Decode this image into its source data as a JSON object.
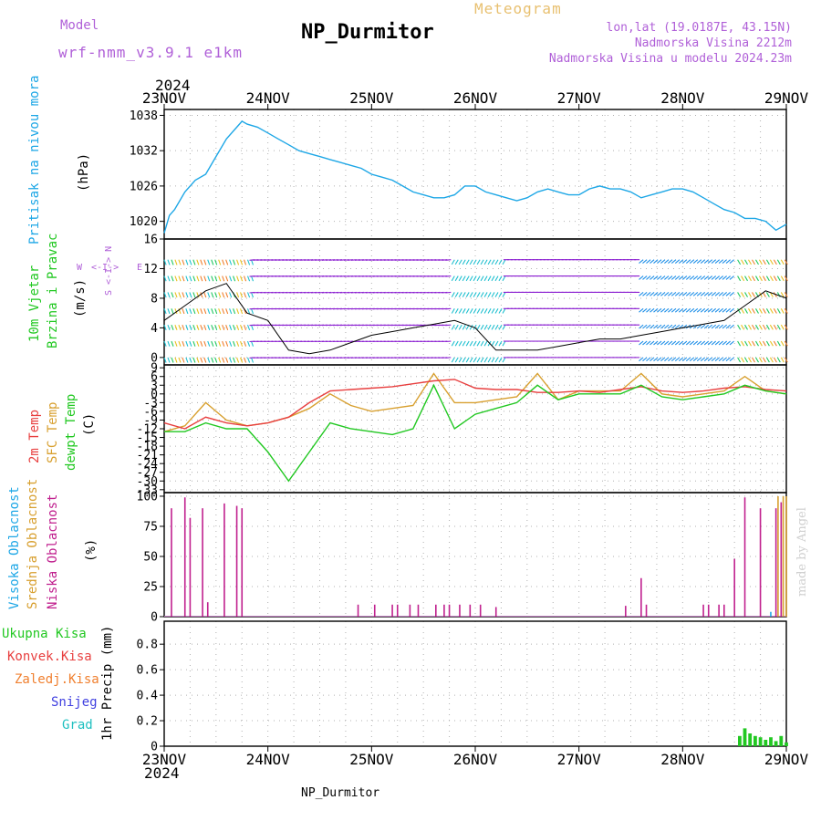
{
  "header": {
    "model_label": "Model",
    "model_value": "wrf-nmm_v3.9.1 e1km",
    "title": "NP_Durmitor",
    "meteogram": "Meteogram",
    "lonlat": "lon,lat (19.0187E, 43.15N)",
    "altitude": "Nadmorska Visina 2212m",
    "model_altitude": "Nadmorska Visina u modelu 2024.23m",
    "year_top": "2024",
    "year_bottom": "2024",
    "footer": "NP_Durmitor",
    "credit": "made by Angel"
  },
  "colors": {
    "pressure": "#1ea7e6",
    "temp2m": "#e84040",
    "sfc_temp": "#d8a030",
    "dewpt": "#22c822",
    "cloud_low": "#c0208e",
    "cloud_mid": "#d8a030",
    "cloud_high": "#1ea7e6",
    "wind_purple": "#8a1ed0",
    "precip_green": "#22c822"
  },
  "panel_labels": {
    "pressure": [
      "Pritisak na nivou mora",
      "(hPa)"
    ],
    "wind": [
      "10m Vjetar",
      "Brzina i Pravac",
      "(m/s)"
    ],
    "compass": [
      "W",
      "<-I->",
      "E",
      "S <-I-> N"
    ],
    "temp": [
      "2m Temp",
      "SFC Temp",
      "dewpt Temp",
      "(C)"
    ],
    "cloud": [
      "Visoka Oblacnost",
      "Srednja Oblacnost",
      "Niska Oblacnost",
      "(%)"
    ],
    "precip_legend": [
      "Ukupna Kisa",
      "Konvek.Kisa",
      "Zaledj.Kisa",
      "Snijeg",
      "Grad"
    ],
    "precip_unit": "1hr Precip (mm)"
  },
  "chart_data": [
    {
      "type": "line",
      "name_key": "pressure",
      "x_days": [
        "23NOV",
        "24NOV",
        "25NOV",
        "26NOV",
        "27NOV",
        "28NOV",
        "29NOV"
      ],
      "yticks": [
        1020,
        1026,
        1032,
        1038
      ],
      "ylim": [
        1017,
        1039
      ],
      "x": [
        0,
        0.05,
        0.1,
        0.2,
        0.3,
        0.4,
        0.5,
        0.6,
        0.7,
        0.75,
        0.8,
        0.9,
        1.0,
        1.1,
        1.2,
        1.3,
        1.4,
        1.5,
        1.6,
        1.7,
        1.8,
        1.9,
        2.0,
        2.1,
        2.2,
        2.3,
        2.4,
        2.5,
        2.6,
        2.7,
        2.8,
        2.9,
        3.0,
        3.1,
        3.2,
        3.3,
        3.4,
        3.5,
        3.6,
        3.7,
        3.8,
        3.9,
        4.0,
        4.1,
        4.2,
        4.3,
        4.4,
        4.5,
        4.6,
        4.7,
        4.8,
        4.9,
        5.0,
        5.1,
        5.2,
        5.3,
        5.4,
        5.5,
        5.6,
        5.7,
        5.8,
        5.9,
        6.0
      ],
      "values": [
        1018,
        1021,
        1022,
        1025,
        1027,
        1028,
        1031,
        1034,
        1036,
        1037,
        1036.5,
        1036,
        1035,
        1034,
        1033,
        1032,
        1031.5,
        1031,
        1030.5,
        1030,
        1029.5,
        1029,
        1028,
        1027.5,
        1027,
        1026,
        1025,
        1024.5,
        1024,
        1024,
        1024.5,
        1026,
        1026,
        1025,
        1024.5,
        1024,
        1023.5,
        1024,
        1025,
        1025.5,
        1025,
        1024.5,
        1024.5,
        1025.5,
        1026,
        1025.5,
        1025.5,
        1025,
        1024,
        1024.5,
        1025,
        1025.5,
        1025.5,
        1025,
        1024,
        1023,
        1022,
        1021.5,
        1020.5,
        1020.5,
        1020,
        1018.5,
        1019.5
      ]
    },
    {
      "type": "line",
      "name_key": "wind",
      "yticks": [
        0,
        4,
        8,
        12,
        16
      ],
      "ylim": [
        -1,
        16
      ],
      "x": [
        0,
        0.2,
        0.4,
        0.6,
        0.8,
        1.0,
        1.2,
        1.4,
        1.6,
        1.8,
        2.0,
        2.2,
        2.4,
        2.6,
        2.8,
        3.0,
        3.2,
        3.4,
        3.6,
        3.8,
        4.0,
        4.2,
        4.4,
        4.6,
        4.8,
        5.0,
        5.2,
        5.4,
        5.6,
        5.8,
        6.0
      ],
      "values": [
        5,
        7,
        9,
        10,
        6,
        5,
        1,
        0.5,
        1,
        2,
        3,
        3.5,
        4,
        4.5,
        5,
        4,
        1,
        1,
        1,
        1.5,
        2,
        2.5,
        2.5,
        3,
        3.5,
        4,
        4.5,
        5,
        7,
        9,
        8
      ]
    },
    {
      "type": "line",
      "name_key": "temp",
      "yticks": [
        9,
        6,
        3,
        0,
        -3,
        -6,
        -9,
        -12,
        -15,
        -18,
        -21,
        -24,
        -27,
        -30,
        -33
      ],
      "ylim": [
        -34,
        10
      ],
      "x": [
        0,
        0.2,
        0.4,
        0.6,
        0.8,
        1.0,
        1.2,
        1.4,
        1.6,
        1.8,
        2.0,
        2.2,
        2.4,
        2.6,
        2.8,
        3.0,
        3.2,
        3.4,
        3.6,
        3.8,
        4.0,
        4.2,
        4.4,
        4.6,
        4.8,
        5.0,
        5.2,
        5.4,
        5.6,
        5.8,
        6.0
      ],
      "temp2m": [
        -10,
        -12,
        -8,
        -10,
        -11,
        -10,
        -8,
        -3,
        1,
        1.5,
        2,
        2.5,
        3.5,
        4.5,
        5,
        2,
        1.5,
        1.5,
        0.5,
        0.5,
        1,
        0.5,
        1.5,
        2.5,
        1,
        0.5,
        1,
        2,
        2.5,
        1.5,
        1
      ],
      "sfc_temp": [
        -13,
        -11,
        -3,
        -9,
        -11,
        -10,
        -8,
        -5,
        0,
        -4,
        -6,
        -5,
        -4,
        7,
        -3,
        -3,
        -2,
        -1,
        7,
        -2,
        1,
        1,
        1,
        7,
        0,
        -1,
        0,
        1,
        6,
        1,
        0
      ],
      "dewpt": [
        -13,
        -13,
        -10,
        -12,
        -12,
        -20,
        -30,
        -20,
        -10,
        -12,
        -13,
        -14,
        -12,
        3,
        -12,
        -7,
        -5,
        -3,
        3,
        -2,
        0,
        0,
        0,
        3,
        -1,
        -2,
        -1,
        0,
        3,
        1,
        0
      ]
    },
    {
      "type": "bar",
      "name_key": "cloud",
      "yticks": [
        0,
        25,
        50,
        75,
        100
      ],
      "ylim": [
        0,
        103
      ],
      "low_x": [
        0.07,
        0.2,
        0.25,
        0.37,
        0.42,
        0.58,
        0.7,
        0.75,
        1.87,
        2.03,
        2.2,
        2.25,
        2.37,
        2.45,
        2.62,
        2.7,
        2.75,
        2.85,
        2.95,
        3.05,
        3.2,
        4.45,
        4.6,
        4.65,
        5.2,
        5.25,
        5.35,
        5.4,
        5.5,
        5.6,
        5.75,
        5.9,
        5.95
      ],
      "low_values": [
        90,
        99,
        82,
        90,
        12,
        94,
        92,
        90,
        10,
        10,
        10,
        10,
        10,
        10,
        10,
        10,
        10,
        10,
        10,
        10,
        8,
        9,
        32,
        10,
        10,
        10,
        10,
        10,
        48,
        99,
        90,
        90,
        95
      ],
      "mid_x": [
        5.92,
        5.97,
        6.0
      ],
      "mid_values": [
        100,
        100,
        100
      ],
      "high_x": [
        5.85
      ],
      "high_values": [
        4
      ]
    },
    {
      "type": "bar",
      "name_key": "precip",
      "yticks": [
        0,
        0.2,
        0.4,
        0.6,
        0.8
      ],
      "ylim": [
        0,
        0.98
      ],
      "x": [
        5.55,
        5.6,
        5.65,
        5.7,
        5.75,
        5.8,
        5.85,
        5.9,
        5.95,
        6.0
      ],
      "values": [
        0.08,
        0.14,
        0.1,
        0.08,
        0.07,
        0.05,
        0.07,
        0.04,
        0.08,
        0.03
      ]
    }
  ]
}
